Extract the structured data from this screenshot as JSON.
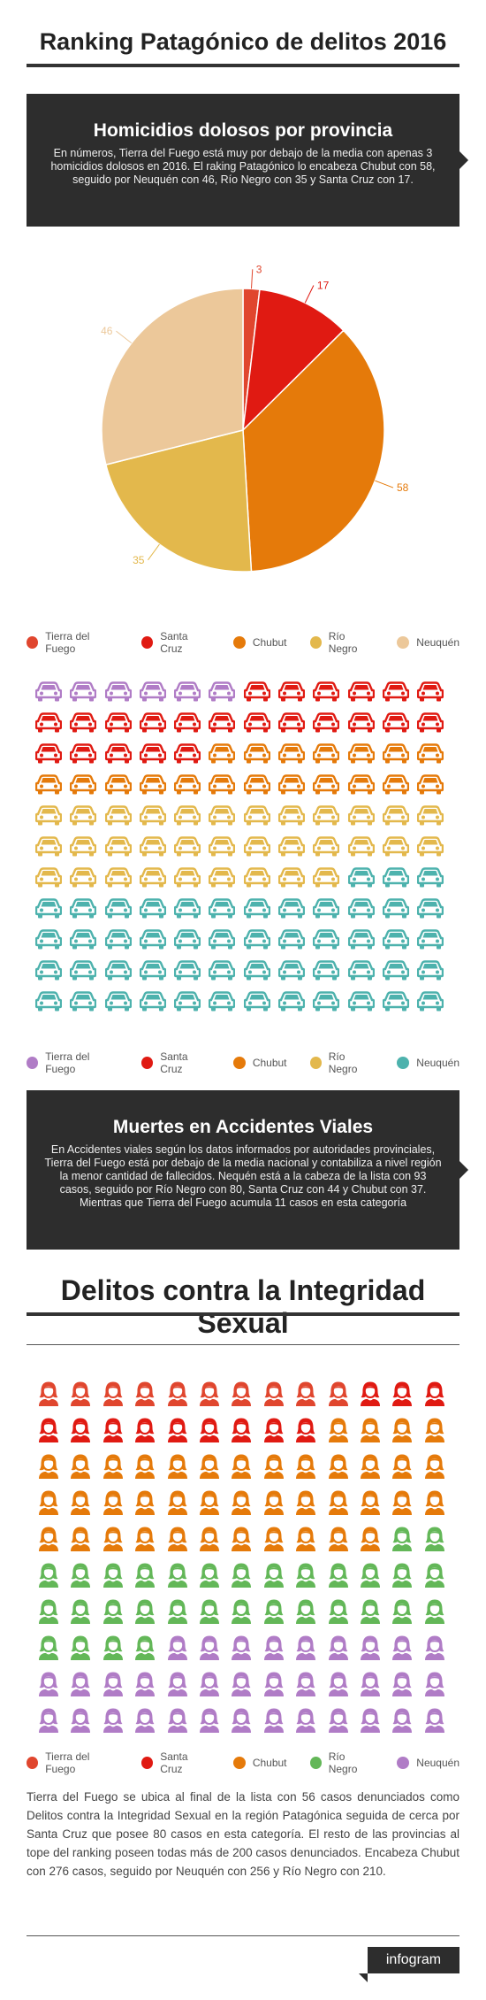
{
  "page": {
    "title": "Ranking Patagónico de delitos 2016",
    "section3_title": "Delitos contra la Integridad Sexual",
    "footer_brand": "infogram"
  },
  "homicidios": {
    "title": "Homicidios dolosos por provincia",
    "text": "En números, Tierra del Fuego está muy por debajo de la media con apenas 3 homicidios dolosos en 2016. El raking Patagónico lo encabeza Chubut con 58, seguido por Neuquén con 46, Río Negro con 35 y Santa Cruz con 17."
  },
  "viales": {
    "title": "Muertes en Accidentes Viales",
    "text": "En Accidentes viales según los datos informados por autoridades provinciales, Tierra del Fuego está por debajo de la media nacional y contabiliza a nivel región la menor cantidad de fallecidos. Nequén está a la cabeza de la lista con 93 casos, seguido por Río Negro con 80, Santa Cruz con 44 y Chubut con 37. Mientras que Tierra del Fuego acumula 11 casos en esta categoría"
  },
  "sexual": {
    "text": "Tierra del Fuego se ubica al final de la lista con 56 casos denunciados como Delitos contra la Integridad Sexual en la región Patagónica seguida de cerca por Santa Cruz que posee 80 casos en esta categoría. El resto de las provincias al tope del ranking poseen todas más de 200 casos denunciados. Encabeza Chubut con 276 casos, seguido por Neuquén con 256 y Río Negro con 210."
  },
  "chart_data": [
    {
      "type": "pie",
      "categories": [
        "Tierra del Fuego",
        "Santa Cruz",
        "Chubut",
        "Río Negro",
        "Neuquén"
      ],
      "values": [
        3,
        17,
        58,
        35,
        46
      ],
      "colors": [
        "#e0462e",
        "#e01a12",
        "#e57a0a",
        "#e3b84c",
        "#ecc89a"
      ],
      "legend": "bottom"
    },
    {
      "type": "pictogram",
      "icon": "car-icon",
      "columns": 12,
      "rows": 11,
      "categories": [
        "Tierra del Fuego",
        "Santa Cruz",
        "Chubut",
        "Río Negro",
        "Neuquén"
      ],
      "icon_counts": [
        6,
        23,
        19,
        33,
        51
      ],
      "colors": [
        "#b07cc6",
        "#e01a12",
        "#e57a0a",
        "#e3b84c",
        "#4db2ad"
      ],
      "legend": "bottom"
    },
    {
      "type": "pictogram",
      "icon": "woman-icon",
      "columns": 13,
      "rows": 10,
      "categories": [
        "Tierra del Fuego",
        "Santa Cruz",
        "Chubut",
        "Río Negro",
        "Neuquén"
      ],
      "icon_counts": [
        10,
        12,
        41,
        32,
        35
      ],
      "colors": [
        "#e0462e",
        "#e01a12",
        "#e57a0a",
        "#63b758",
        "#b07cc6"
      ],
      "legend": "bottom"
    }
  ]
}
